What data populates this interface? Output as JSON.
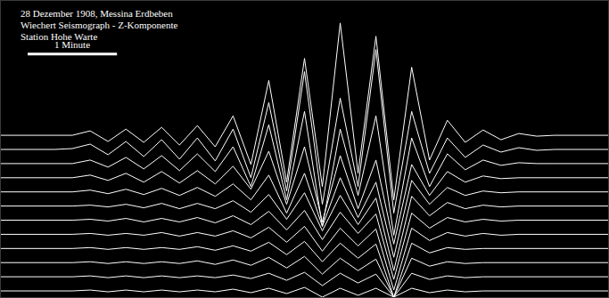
{
  "chart_data": {
    "type": "line",
    "annotations": [
      "28 Dezember 1908, Messina Erdbeben",
      "Wiechert Seismograph - Z-Komponente",
      "Station Hohe Warte"
    ],
    "scale_bar": {
      "label": "1 Minute",
      "length": 1
    },
    "color": "#ffffff",
    "tick_labels": false,
    "grid": false,
    "xlim": [
      0,
      6.8
    ],
    "ylim": [
      0,
      33.5
    ],
    "x": [
      0,
      0.2,
      0.4,
      0.6,
      0.8,
      1.0,
      1.2,
      1.4,
      1.6,
      1.8,
      2.0,
      2.2,
      2.4,
      2.6,
      2.8,
      3.0,
      3.2,
      3.4,
      3.6,
      3.8,
      4.0,
      4.2,
      4.4,
      4.6,
      4.8,
      5.0,
      5.2,
      5.4,
      5.6,
      5.8,
      6.0,
      6.2,
      6.4,
      6.6,
      6.8
    ],
    "series": [
      {
        "values": [
          18.3,
          18.3,
          18.3,
          18.3,
          18.3,
          18.8,
          17.6,
          19.0,
          17.5,
          19.2,
          17.2,
          19.4,
          17.0,
          20.5,
          15.0,
          24.5,
          13.0,
          27.0,
          12.5,
          31.0,
          14.0,
          29.5,
          11.0,
          26.0,
          15.5,
          20.0,
          17.5,
          18.9,
          17.8,
          18.5,
          18.2,
          18.3,
          18.3,
          18.3,
          18.3
        ]
      },
      {
        "values": [
          16.7,
          16.7,
          16.7,
          16.7,
          16.8,
          17.3,
          16.1,
          17.6,
          15.9,
          17.8,
          15.6,
          18.0,
          15.4,
          19.0,
          13.5,
          22.0,
          12.0,
          25.5,
          10.5,
          22.5,
          12.5,
          28.0,
          9.5,
          21.0,
          14.0,
          18.0,
          15.8,
          17.2,
          16.4,
          16.9,
          16.6,
          16.7,
          16.7,
          16.7,
          16.7
        ]
      },
      {
        "values": [
          15.1,
          15.1,
          15.1,
          15.1,
          15.1,
          15.5,
          14.7,
          15.8,
          14.5,
          16.0,
          14.3,
          16.2,
          14.2,
          17.0,
          12.5,
          19.5,
          11.0,
          21.0,
          8.0,
          19.0,
          11.5,
          20.5,
          7.0,
          18.0,
          12.5,
          16.2,
          14.4,
          15.5,
          14.9,
          15.2,
          15.1,
          15.1,
          15.1,
          15.1,
          15.1
        ]
      },
      {
        "values": [
          13.5,
          13.5,
          13.5,
          13.5,
          13.5,
          13.8,
          13.2,
          14.0,
          13.0,
          14.2,
          12.9,
          14.3,
          12.8,
          14.8,
          12.2,
          16.5,
          10.5,
          17.0,
          8.5,
          16.0,
          10.0,
          15.5,
          6.0,
          15.0,
          11.5,
          14.2,
          13.0,
          13.7,
          13.4,
          13.5,
          13.5,
          13.5,
          13.5,
          13.5,
          13.5
        ]
      },
      {
        "values": [
          11.9,
          11.9,
          11.9,
          11.9,
          11.9,
          12.1,
          11.7,
          12.2,
          11.6,
          12.3,
          11.5,
          12.4,
          11.4,
          12.8,
          11.0,
          13.8,
          9.5,
          14.0,
          8.0,
          13.5,
          9.0,
          13.0,
          4.5,
          13.2,
          10.5,
          12.4,
          11.5,
          12.0,
          11.8,
          11.9,
          11.9,
          11.9,
          11.9,
          11.9,
          11.9
        ]
      },
      {
        "values": [
          10.3,
          10.3,
          10.3,
          10.3,
          10.3,
          10.4,
          10.2,
          10.5,
          10.1,
          10.6,
          10.0,
          10.6,
          10.0,
          10.9,
          9.6,
          11.6,
          8.8,
          11.8,
          7.5,
          11.5,
          8.2,
          11.2,
          3.0,
          11.4,
          9.2,
          10.7,
          10.0,
          10.4,
          10.2,
          10.3,
          10.3,
          10.3,
          10.3,
          10.3,
          10.3
        ]
      },
      {
        "values": [
          8.7,
          8.7,
          8.7,
          8.7,
          8.7,
          8.8,
          8.6,
          8.9,
          8.5,
          8.9,
          8.5,
          9.0,
          8.4,
          9.2,
          8.2,
          9.7,
          7.6,
          9.8,
          6.5,
          9.6,
          7.2,
          9.4,
          2.0,
          9.5,
          7.8,
          9.0,
          8.5,
          8.8,
          8.6,
          8.7,
          8.7,
          8.7,
          8.7,
          8.7,
          8.7
        ]
      },
      {
        "values": [
          7.1,
          7.1,
          7.1,
          7.1,
          7.1,
          7.2,
          7.0,
          7.2,
          7.0,
          7.3,
          6.9,
          7.3,
          6.9,
          7.5,
          6.7,
          7.9,
          6.2,
          8.0,
          5.2,
          7.8,
          5.8,
          7.7,
          0.8,
          7.8,
          6.4,
          7.3,
          6.9,
          7.2,
          7.0,
          7.1,
          7.1,
          7.1,
          7.1,
          7.1,
          7.1
        ]
      },
      {
        "values": [
          5.5,
          5.5,
          5.5,
          5.5,
          5.5,
          5.6,
          5.4,
          5.6,
          5.4,
          5.6,
          5.4,
          5.7,
          5.3,
          5.8,
          5.2,
          6.2,
          4.8,
          6.3,
          4.0,
          6.1,
          4.4,
          6.0,
          0.0,
          6.1,
          5.0,
          5.6,
          5.4,
          5.5,
          5.5,
          5.5,
          5.5,
          5.5,
          5.5,
          5.5,
          5.5
        ]
      },
      {
        "values": [
          3.9,
          3.9,
          3.9,
          3.9,
          3.9,
          4.0,
          3.8,
          4.0,
          3.8,
          4.0,
          3.8,
          4.1,
          3.7,
          4.2,
          3.6,
          4.5,
          3.3,
          4.6,
          2.6,
          4.4,
          3.0,
          4.3,
          0.0,
          4.4,
          3.5,
          4.0,
          3.8,
          3.9,
          3.9,
          3.9,
          3.9,
          3.9,
          3.9,
          3.9,
          3.9
        ]
      },
      {
        "values": [
          2.3,
          2.3,
          2.3,
          2.3,
          2.3,
          2.4,
          2.2,
          2.4,
          2.2,
          2.4,
          2.2,
          2.4,
          2.2,
          2.5,
          2.1,
          2.7,
          1.9,
          2.8,
          1.3,
          2.7,
          1.6,
          2.6,
          0.0,
          2.7,
          2.0,
          2.4,
          2.2,
          2.3,
          2.3,
          2.3,
          2.3,
          2.3,
          2.3,
          2.3,
          2.3
        ]
      },
      {
        "values": [
          0.7,
          0.7,
          0.7,
          0.7,
          0.7,
          0.8,
          0.6,
          0.8,
          0.6,
          0.8,
          0.6,
          0.8,
          0.6,
          0.9,
          0.5,
          1.0,
          0.4,
          1.1,
          0.0,
          1.0,
          0.2,
          1.0,
          0.0,
          1.0,
          0.5,
          0.8,
          0.6,
          0.7,
          0.7,
          0.7,
          0.7,
          0.7,
          0.7,
          0.7,
          0.7
        ]
      }
    ]
  }
}
